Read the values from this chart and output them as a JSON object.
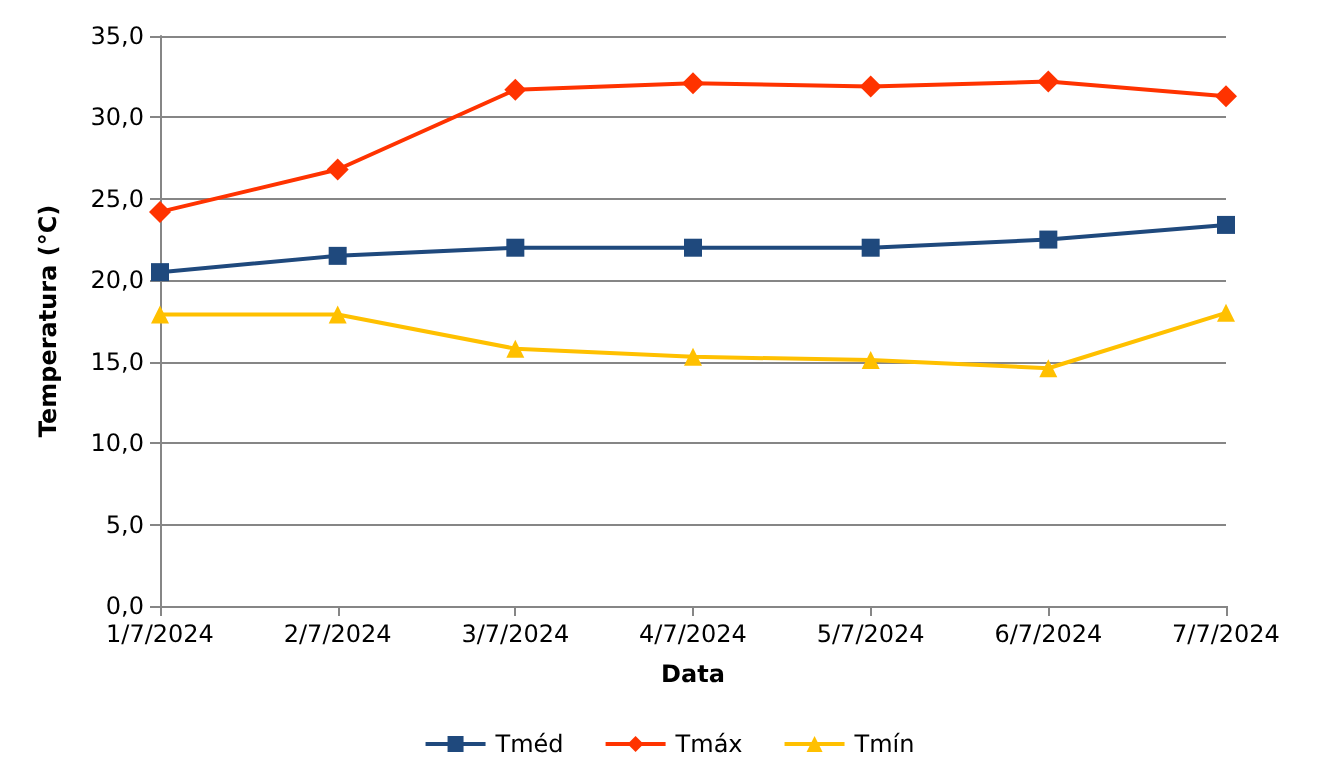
{
  "chart_data": {
    "type": "line",
    "xlabel": "Data",
    "ylabel": "Temperatura (°C)",
    "categories": [
      "1/7/2024",
      "2/7/2024",
      "3/7/2024",
      "4/7/2024",
      "5/7/2024",
      "6/7/2024",
      "7/7/2024"
    ],
    "series": [
      {
        "name": "Tméd",
        "color": "#1f497d",
        "marker": "square",
        "values": [
          20.5,
          21.5,
          22.0,
          22.0,
          22.0,
          22.5,
          23.4
        ]
      },
      {
        "name": "Tmáx",
        "color": "#ff3300",
        "marker": "diamond",
        "values": [
          24.2,
          26.8,
          31.7,
          32.1,
          31.9,
          32.2,
          31.3
        ]
      },
      {
        "name": "Tmín",
        "color": "#ffc000",
        "marker": "triangle",
        "values": [
          17.9,
          17.9,
          15.8,
          15.3,
          15.1,
          14.6,
          18.0
        ]
      }
    ],
    "ylim": [
      0,
      35
    ],
    "yticks": [
      {
        "value": 0,
        "label": "0,0"
      },
      {
        "value": 5,
        "label": "5,0"
      },
      {
        "value": 10,
        "label": "10,0"
      },
      {
        "value": 15,
        "label": "15,0"
      },
      {
        "value": 20,
        "label": "20,0"
      },
      {
        "value": 25,
        "label": "25,0"
      },
      {
        "value": 30,
        "label": "30,0"
      },
      {
        "value": 35,
        "label": "35,0"
      }
    ],
    "grid": "y",
    "legend": "bottom",
    "line_style": "solid"
  }
}
